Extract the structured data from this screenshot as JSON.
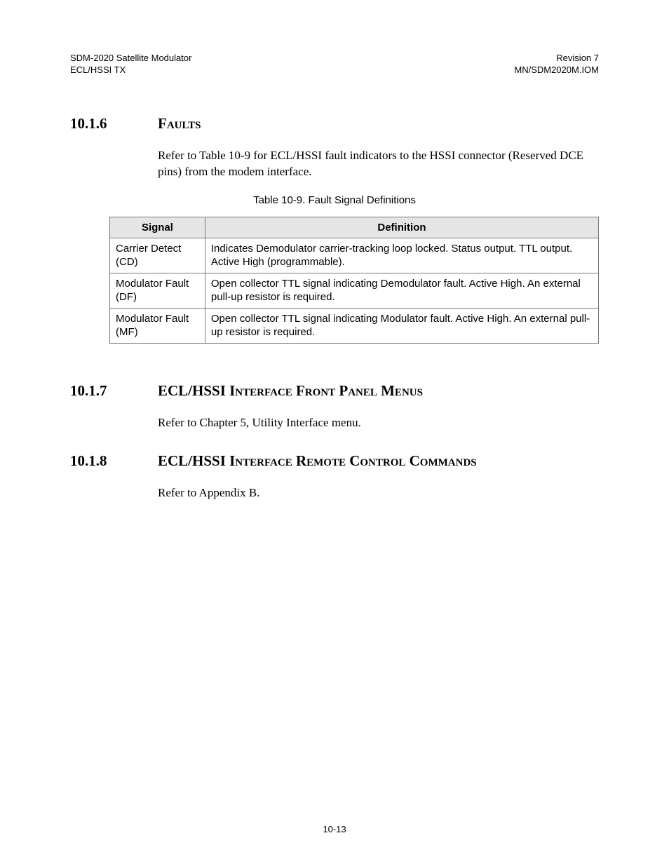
{
  "header": {
    "left_line1": "SDM-2020 Satellite Modulator",
    "left_line2": "ECL/HSSI TX",
    "right_line1": "Revision 7",
    "right_line2": "MN/SDM2020M.IOM"
  },
  "section_10_1_6": {
    "number": "10.1.6",
    "title": "Faults",
    "body": "Refer to Table 10-9 for ECL/HSSI fault indicators to the HSSI connector (Reserved DCE pins) from the modem interface.",
    "table_caption": "Table 10-9.  Fault Signal Definitions",
    "table": {
      "columns": [
        "Signal",
        "Definition"
      ],
      "rows": [
        {
          "signal": "Carrier Detect (CD)",
          "definition": "Indicates Demodulator carrier-tracking loop locked. Status output. TTL output. Active High (programmable)."
        },
        {
          "signal": "Modulator Fault (DF)",
          "definition": "Open collector TTL signal indicating Demodulator fault. Active High. An external pull-up resistor is required."
        },
        {
          "signal": "Modulator Fault (MF)",
          "definition": "Open collector TTL signal indicating Modulator fault. Active High. An external pull-up resistor is required."
        }
      ]
    }
  },
  "section_10_1_7": {
    "number": "10.1.7",
    "title": "ECL/HSSI Interface Front Panel Menus",
    "body": "Refer to Chapter 5, Utility Interface menu."
  },
  "section_10_1_8": {
    "number": "10.1.8",
    "title": "ECL/HSSI Interface Remote Control Commands",
    "body": "Refer to Appendix B."
  },
  "page_number": "10-13"
}
